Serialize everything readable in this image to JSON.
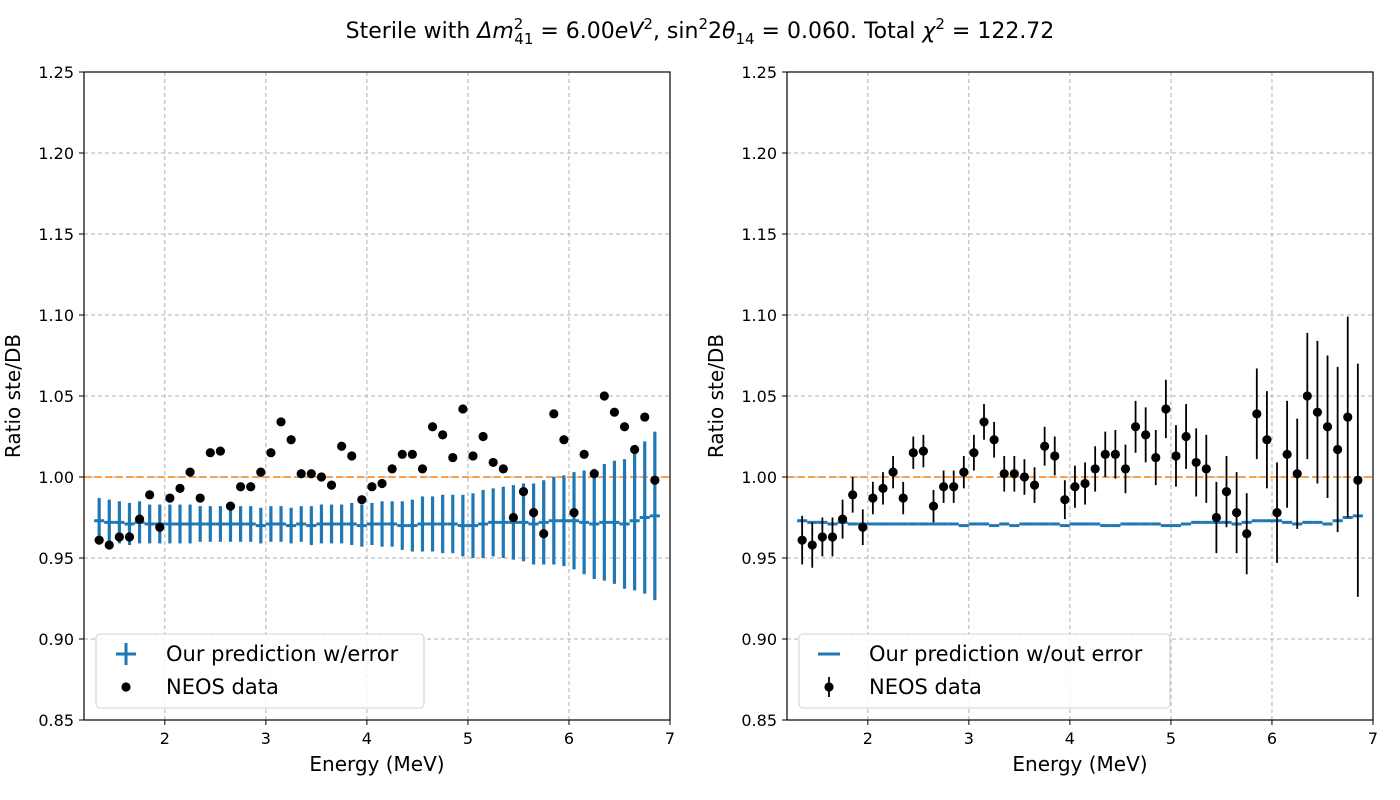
{
  "figure": {
    "title_parts": [
      "Sterile with ",
      "Δm",
      "2",
      "41",
      " = 6.00",
      "eV",
      "2",
      ", sin",
      "2",
      "2",
      "θ",
      "14",
      " = 0.060. Total ",
      "χ",
      "2",
      " = 122.72"
    ],
    "colors": {
      "prediction": "#1f77b4",
      "reference": "#ff7f0e",
      "data": "#000000",
      "grid": "#b0b0b0"
    }
  },
  "chart_data": [
    {
      "type": "scatter",
      "title": "",
      "xlabel": "Energy (MeV)",
      "ylabel": "Ratio ste/DB",
      "xlim": [
        1.2,
        7.0
      ],
      "ylim": [
        0.85,
        1.25
      ],
      "xticks": [
        2,
        3,
        4,
        5,
        6,
        7
      ],
      "yticks": [
        0.85,
        0.9,
        0.95,
        1.0,
        1.05,
        1.1,
        1.15,
        1.2,
        1.25
      ],
      "ytick_labels": [
        "0.85",
        "0.90",
        "0.95",
        "1.00",
        "1.05",
        "1.10",
        "1.15",
        "1.20",
        "1.25"
      ],
      "grid": true,
      "legend_position": "lower-left",
      "reference_line": 1.0,
      "bin_width": 0.1,
      "x": [
        1.35,
        1.45,
        1.55,
        1.65,
        1.75,
        1.85,
        1.95,
        2.05,
        2.15,
        2.25,
        2.35,
        2.45,
        2.55,
        2.65,
        2.75,
        2.85,
        2.95,
        3.05,
        3.15,
        3.25,
        3.35,
        3.45,
        3.55,
        3.65,
        3.75,
        3.85,
        3.95,
        4.05,
        4.15,
        4.25,
        4.35,
        4.45,
        4.55,
        4.65,
        4.75,
        4.85,
        4.95,
        5.05,
        5.15,
        5.25,
        5.35,
        5.45,
        5.55,
        5.65,
        5.75,
        5.85,
        5.95,
        6.05,
        6.15,
        6.25,
        6.35,
        6.45,
        6.55,
        6.65,
        6.75,
        6.85
      ],
      "series": [
        {
          "name": "Our prediction w/error",
          "kind": "errorbar",
          "values": [
            0.973,
            0.972,
            0.972,
            0.971,
            0.972,
            0.971,
            0.971,
            0.971,
            0.971,
            0.971,
            0.971,
            0.971,
            0.971,
            0.971,
            0.971,
            0.971,
            0.97,
            0.971,
            0.971,
            0.97,
            0.971,
            0.97,
            0.971,
            0.971,
            0.971,
            0.971,
            0.97,
            0.971,
            0.971,
            0.971,
            0.97,
            0.97,
            0.971,
            0.971,
            0.971,
            0.971,
            0.97,
            0.97,
            0.971,
            0.972,
            0.972,
            0.972,
            0.972,
            0.971,
            0.972,
            0.973,
            0.973,
            0.973,
            0.972,
            0.971,
            0.972,
            0.972,
            0.971,
            0.973,
            0.975,
            0.976
          ],
          "errors": [
            0.014,
            0.014,
            0.013,
            0.013,
            0.013,
            0.012,
            0.012,
            0.012,
            0.012,
            0.012,
            0.011,
            0.011,
            0.011,
            0.011,
            0.011,
            0.011,
            0.011,
            0.011,
            0.011,
            0.011,
            0.011,
            0.012,
            0.012,
            0.012,
            0.012,
            0.013,
            0.013,
            0.013,
            0.014,
            0.014,
            0.015,
            0.016,
            0.017,
            0.017,
            0.018,
            0.018,
            0.019,
            0.02,
            0.021,
            0.021,
            0.022,
            0.023,
            0.024,
            0.025,
            0.026,
            0.027,
            0.028,
            0.03,
            0.032,
            0.034,
            0.036,
            0.038,
            0.04,
            0.043,
            0.047,
            0.052
          ]
        },
        {
          "name": "NEOS data",
          "kind": "points",
          "values": [
            0.961,
            0.958,
            0.963,
            0.963,
            0.974,
            0.989,
            0.969,
            0.987,
            0.993,
            1.003,
            0.987,
            1.015,
            1.016,
            0.982,
            0.994,
            0.994,
            1.003,
            1.015,
            1.034,
            1.023,
            1.002,
            1.002,
            1.0,
            0.995,
            1.019,
            1.013,
            0.986,
            0.994,
            0.996,
            1.005,
            1.014,
            1.014,
            1.005,
            1.031,
            1.026,
            1.012,
            1.042,
            1.013,
            1.025,
            1.009,
            1.005,
            0.975,
            0.991,
            0.978,
            0.965,
            1.039,
            1.023,
            0.978,
            1.014,
            1.002,
            1.05,
            1.04,
            1.031,
            1.017,
            1.037,
            0.998
          ]
        }
      ]
    },
    {
      "type": "scatter",
      "title": "",
      "xlabel": "Energy (MeV)",
      "ylabel": "Ratio ste/DB",
      "xlim": [
        1.2,
        7.0
      ],
      "ylim": [
        0.85,
        1.25
      ],
      "xticks": [
        2,
        3,
        4,
        5,
        6,
        7
      ],
      "yticks": [
        0.85,
        0.9,
        0.95,
        1.0,
        1.05,
        1.1,
        1.15,
        1.2,
        1.25
      ],
      "ytick_labels": [
        "0.85",
        "0.90",
        "0.95",
        "1.00",
        "1.05",
        "1.10",
        "1.15",
        "1.20",
        "1.25"
      ],
      "grid": true,
      "legend_position": "lower-left",
      "reference_line": 1.0,
      "bin_width": 0.1,
      "x": [
        1.35,
        1.45,
        1.55,
        1.65,
        1.75,
        1.85,
        1.95,
        2.05,
        2.15,
        2.25,
        2.35,
        2.45,
        2.55,
        2.65,
        2.75,
        2.85,
        2.95,
        3.05,
        3.15,
        3.25,
        3.35,
        3.45,
        3.55,
        3.65,
        3.75,
        3.85,
        3.95,
        4.05,
        4.15,
        4.25,
        4.35,
        4.45,
        4.55,
        4.65,
        4.75,
        4.85,
        4.95,
        5.05,
        5.15,
        5.25,
        5.35,
        5.45,
        5.55,
        5.65,
        5.75,
        5.85,
        5.95,
        6.05,
        6.15,
        6.25,
        6.35,
        6.45,
        6.55,
        6.65,
        6.75,
        6.85
      ],
      "series": [
        {
          "name": "Our prediction w/out error",
          "kind": "steps",
          "values": [
            0.973,
            0.972,
            0.972,
            0.971,
            0.972,
            0.971,
            0.971,
            0.971,
            0.971,
            0.971,
            0.971,
            0.971,
            0.971,
            0.971,
            0.971,
            0.971,
            0.97,
            0.971,
            0.971,
            0.97,
            0.971,
            0.97,
            0.971,
            0.971,
            0.971,
            0.971,
            0.97,
            0.971,
            0.971,
            0.971,
            0.97,
            0.97,
            0.971,
            0.971,
            0.971,
            0.971,
            0.97,
            0.97,
            0.971,
            0.972,
            0.972,
            0.972,
            0.972,
            0.971,
            0.972,
            0.973,
            0.973,
            0.973,
            0.972,
            0.971,
            0.972,
            0.972,
            0.971,
            0.973,
            0.975,
            0.976
          ]
        },
        {
          "name": "NEOS data",
          "kind": "errorpoints",
          "values": [
            0.961,
            0.958,
            0.963,
            0.963,
            0.974,
            0.989,
            0.969,
            0.987,
            0.993,
            1.003,
            0.987,
            1.015,
            1.016,
            0.982,
            0.994,
            0.994,
            1.003,
            1.015,
            1.034,
            1.023,
            1.002,
            1.002,
            1.0,
            0.995,
            1.019,
            1.013,
            0.986,
            0.994,
            0.996,
            1.005,
            1.014,
            1.014,
            1.005,
            1.031,
            1.026,
            1.012,
            1.042,
            1.013,
            1.025,
            1.009,
            1.005,
            0.975,
            0.991,
            0.978,
            0.965,
            1.039,
            1.023,
            0.978,
            1.014,
            1.002,
            1.05,
            1.04,
            1.031,
            1.017,
            1.037,
            0.998
          ],
          "errors": [
            0.015,
            0.014,
            0.012,
            0.012,
            0.012,
            0.011,
            0.011,
            0.01,
            0.01,
            0.01,
            0.01,
            0.01,
            0.01,
            0.01,
            0.01,
            0.01,
            0.01,
            0.011,
            0.011,
            0.011,
            0.011,
            0.011,
            0.011,
            0.011,
            0.012,
            0.012,
            0.012,
            0.013,
            0.013,
            0.014,
            0.014,
            0.015,
            0.015,
            0.016,
            0.017,
            0.017,
            0.018,
            0.019,
            0.02,
            0.021,
            0.021,
            0.022,
            0.022,
            0.025,
            0.025,
            0.028,
            0.03,
            0.031,
            0.033,
            0.034,
            0.039,
            0.044,
            0.044,
            0.051,
            0.062,
            0.072
          ]
        }
      ]
    }
  ]
}
